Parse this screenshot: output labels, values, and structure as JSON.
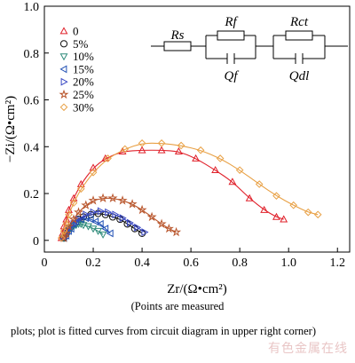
{
  "chart_data": {
    "type": "scatter",
    "xlabel": "Zr/(Ω•cm²)",
    "ylabel": "−Zi/(Ω•cm²)",
    "xlim": [
      0,
      1.25
    ],
    "ylim": [
      -0.05,
      1.0
    ],
    "xticks": [
      "0",
      "0.2",
      "0.4",
      "0.6",
      "0.8",
      "1.0",
      "1.2"
    ],
    "yticks": [
      "0",
      "0.2",
      "0.4",
      "0.6",
      "0.8",
      "1.0"
    ],
    "legend_position": "top-left",
    "series": [
      {
        "name": "0",
        "marker": "triangle-up",
        "color": "#e0202a",
        "x": [
          0.07,
          0.075,
          0.08,
          0.09,
          0.1,
          0.12,
          0.15,
          0.2,
          0.25,
          0.32,
          0.4,
          0.48,
          0.55,
          0.62,
          0.7,
          0.77,
          0.84,
          0.9,
          0.95,
          0.98
        ],
        "y": [
          0.01,
          0.03,
          0.06,
          0.09,
          0.13,
          0.18,
          0.24,
          0.31,
          0.35,
          0.38,
          0.385,
          0.385,
          0.38,
          0.35,
          0.3,
          0.25,
          0.18,
          0.13,
          0.1,
          0.09
        ]
      },
      {
        "name": "5%",
        "marker": "circle",
        "color": "#111111",
        "x": [
          0.08,
          0.09,
          0.1,
          0.12,
          0.14,
          0.16,
          0.19,
          0.22,
          0.25,
          0.28,
          0.31,
          0.34,
          0.37,
          0.4
        ],
        "y": [
          0.01,
          0.03,
          0.05,
          0.07,
          0.09,
          0.1,
          0.11,
          0.115,
          0.11,
          0.1,
          0.09,
          0.07,
          0.05,
          0.03
        ]
      },
      {
        "name": "10%",
        "marker": "triangle-down",
        "color": "#2e8b7a",
        "x": [
          0.08,
          0.09,
          0.1,
          0.11,
          0.12,
          0.13,
          0.14,
          0.15,
          0.16,
          0.18,
          0.2,
          0.22,
          0.24
        ],
        "y": [
          0.01,
          0.02,
          0.04,
          0.05,
          0.06,
          0.065,
          0.07,
          0.07,
          0.065,
          0.06,
          0.05,
          0.04,
          0.025
        ]
      },
      {
        "name": "15%",
        "marker": "triangle-left",
        "color": "#1f4fb4",
        "x": [
          0.08,
          0.09,
          0.1,
          0.11,
          0.12,
          0.13,
          0.15,
          0.17,
          0.19,
          0.21,
          0.23,
          0.25,
          0.27
        ],
        "y": [
          0.01,
          0.02,
          0.04,
          0.05,
          0.07,
          0.08,
          0.09,
          0.095,
          0.09,
          0.08,
          0.07,
          0.05,
          0.03
        ]
      },
      {
        "name": "20%",
        "marker": "triangle-right",
        "color": "#3a48c4",
        "x": [
          0.08,
          0.09,
          0.1,
          0.12,
          0.14,
          0.17,
          0.2,
          0.23,
          0.26,
          0.29,
          0.32,
          0.35,
          0.38,
          0.41
        ],
        "y": [
          0.01,
          0.03,
          0.05,
          0.07,
          0.09,
          0.11,
          0.12,
          0.125,
          0.12,
          0.11,
          0.095,
          0.075,
          0.055,
          0.035
        ]
      },
      {
        "name": "25%",
        "marker": "star",
        "color": "#b8542a",
        "x": [
          0.08,
          0.09,
          0.1,
          0.12,
          0.14,
          0.17,
          0.2,
          0.24,
          0.28,
          0.32,
          0.36,
          0.4,
          0.44,
          0.48,
          0.51,
          0.54
        ],
        "y": [
          0.01,
          0.03,
          0.06,
          0.09,
          0.12,
          0.15,
          0.17,
          0.18,
          0.18,
          0.17,
          0.155,
          0.13,
          0.1,
          0.07,
          0.05,
          0.035
        ]
      },
      {
        "name": "30%",
        "marker": "diamond",
        "color": "#e8a044",
        "x": [
          0.07,
          0.08,
          0.09,
          0.1,
          0.12,
          0.15,
          0.2,
          0.26,
          0.33,
          0.4,
          0.48,
          0.56,
          0.64,
          0.72,
          0.8,
          0.88,
          0.95,
          1.02,
          1.08,
          1.12
        ],
        "y": [
          0.01,
          0.04,
          0.07,
          0.11,
          0.16,
          0.22,
          0.29,
          0.35,
          0.39,
          0.415,
          0.415,
          0.405,
          0.385,
          0.35,
          0.3,
          0.24,
          0.19,
          0.15,
          0.12,
          0.11
        ]
      }
    ],
    "circuit": {
      "rs": "Rs",
      "rf": "Rf",
      "rct": "Rct",
      "qf": "Qf",
      "qdl": "Qdl"
    }
  },
  "captions": {
    "line1": "(Points are measured",
    "line2": "plots; plot is fitted curves from circuit diagram in upper right corner)"
  },
  "watermark": "有色金属在线"
}
